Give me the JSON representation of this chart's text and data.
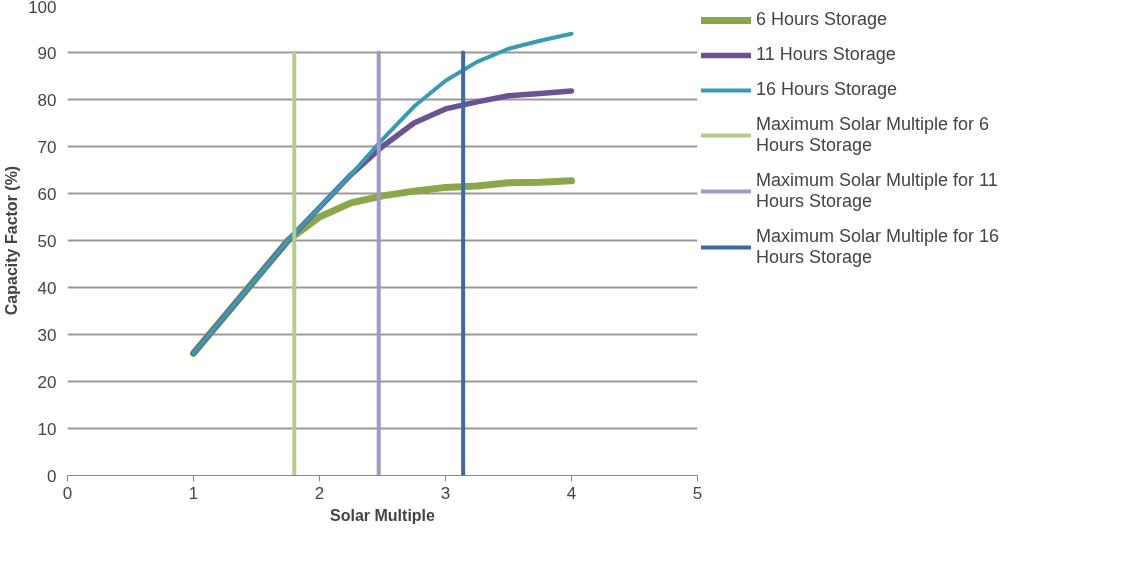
{
  "chart_data": {
    "type": "line",
    "xlabel": "Solar Multiple",
    "ylabel": "Capacity Factor (%)",
    "xlim": [
      0,
      5
    ],
    "xticks": [
      0,
      1,
      2,
      3,
      4,
      5
    ],
    "ylim": [
      0,
      100
    ],
    "yticks": [
      0,
      10,
      20,
      30,
      40,
      50,
      60,
      70,
      80,
      90,
      100
    ],
    "grid": "y",
    "legend": "right",
    "marker": "none",
    "line_style": "solid",
    "series": [
      {
        "name": "6 Hours Storage",
        "color": "#8aa84a",
        "x": [
          1,
          1.25,
          1.5,
          1.75,
          2,
          2.25,
          2.5,
          2.75,
          3,
          3.25,
          3.5,
          3.75,
          4
        ],
        "values": [
          26,
          34,
          42,
          50,
          55,
          58,
          59.5,
          60.5,
          61.3,
          61.6,
          62.3,
          62.4,
          62.7
        ]
      },
      {
        "name": "11 Hours Storage",
        "color": "#6b5293",
        "x": [
          1,
          1.25,
          1.5,
          1.75,
          2,
          2.25,
          2.5,
          2.75,
          3,
          3.25,
          3.5,
          3.75,
          4
        ],
        "values": [
          26,
          34,
          42,
          50,
          57,
          64,
          70,
          75,
          78,
          79.5,
          80.8,
          81.3,
          81.8
        ]
      },
      {
        "name": "16 Hours Storage",
        "color": "#3a9ab0",
        "x": [
          1,
          1.25,
          1.5,
          1.75,
          2,
          2.25,
          2.5,
          2.75,
          3,
          3.25,
          3.5,
          3.75,
          4
        ],
        "values": [
          26,
          34,
          42,
          50,
          57,
          64,
          71.5,
          78.5,
          84,
          88,
          90.8,
          92.5,
          94
        ]
      },
      {
        "name": "Maximum Solar Multiple for 6 Hours Storage",
        "color": "#b5cc8e",
        "x": [
          1.8,
          1.8
        ],
        "values": [
          0,
          90
        ]
      },
      {
        "name": "Maximum Solar Multiple for 11 Hours Storage",
        "color": "#a499c4",
        "x": [
          2.47,
          2.47
        ],
        "values": [
          0,
          90
        ]
      },
      {
        "name": "Maximum Solar Multiple for 16 Hours Storage",
        "color": "#3d6aa0",
        "x": [
          3.14,
          3.14
        ],
        "values": [
          0,
          90
        ]
      }
    ]
  }
}
